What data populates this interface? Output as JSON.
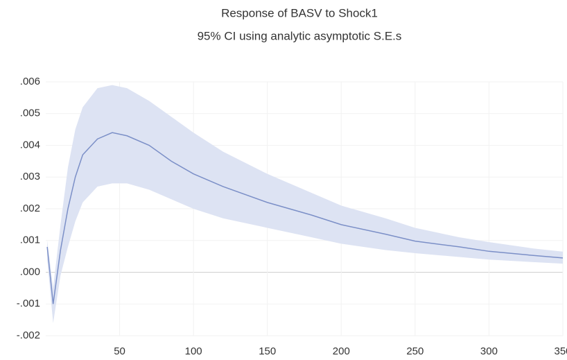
{
  "chart_data": {
    "type": "line",
    "title": "Response of BASV to Shock1",
    "subtitle": "95% CI using analytic asymptotic S.E.s",
    "x": [
      1,
      5,
      10,
      15,
      20,
      25,
      35,
      45,
      55,
      70,
      85,
      100,
      120,
      150,
      180,
      200,
      230,
      250,
      280,
      300,
      330,
      350
    ],
    "values": [
      0.0008,
      -0.001,
      0.0007,
      0.002,
      0.003,
      0.0037,
      0.0042,
      0.0044,
      0.0043,
      0.004,
      0.0035,
      0.0031,
      0.0027,
      0.0022,
      0.0018,
      0.0015,
      0.0012,
      0.00098,
      0.0008,
      0.00066,
      0.00053,
      0.00045
    ],
    "ci_upper": [
      0.001,
      -0.0005,
      0.0015,
      0.0033,
      0.0045,
      0.0052,
      0.0058,
      0.0059,
      0.0058,
      0.0054,
      0.0049,
      0.0044,
      0.0038,
      0.0031,
      0.0025,
      0.0021,
      0.0017,
      0.0014,
      0.0011,
      0.00095,
      0.00075,
      0.00065
    ],
    "ci_lower": [
      0.0004,
      -0.0016,
      -0.0001,
      0.0008,
      0.0016,
      0.0022,
      0.0027,
      0.0028,
      0.0028,
      0.0026,
      0.0023,
      0.002,
      0.0017,
      0.0014,
      0.0011,
      0.0009,
      0.0007,
      0.0006,
      0.00048,
      0.0004,
      0.00032,
      0.00027
    ],
    "color": "#7b8fc7",
    "band_color": "#dde3f3",
    "xlim": [
      0,
      350
    ],
    "ylim": [
      -0.002,
      0.006
    ],
    "xticks": [
      50,
      100,
      150,
      200,
      250,
      300,
      350
    ],
    "yticks": [
      {
        "value": -0.002,
        "label": "-.002"
      },
      {
        "value": -0.001,
        "label": "-.001"
      },
      {
        "value": 0,
        "label": ".000"
      },
      {
        "value": 0.001,
        "label": ".001"
      },
      {
        "value": 0.002,
        "label": ".002"
      },
      {
        "value": 0.003,
        "label": ".003"
      },
      {
        "value": 0.004,
        "label": ".004"
      },
      {
        "value": 0.005,
        "label": ".005"
      },
      {
        "value": 0.006,
        "label": ".006"
      }
    ],
    "grid": true
  }
}
